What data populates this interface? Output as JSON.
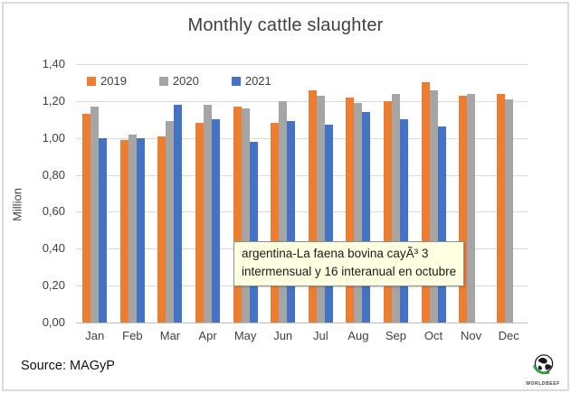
{
  "window": {
    "background": "#ffffff",
    "border_color": "#dcdcdc"
  },
  "chart_data": {
    "type": "bar",
    "title": "Monthly cattle slaughter",
    "xlabel": "",
    "ylabel": "Million",
    "ylim": [
      0,
      1.4
    ],
    "y_ticks": [
      "0,00",
      "0,20",
      "0,40",
      "0,60",
      "0,80",
      "1,00",
      "1,20",
      "1,40"
    ],
    "grid": true,
    "legend_position": "top-left-inside",
    "categories": [
      "Jan",
      "Feb",
      "Mar",
      "Apr",
      "May",
      "Jun",
      "Jul",
      "Aug",
      "Sep",
      "Oct",
      "Nov",
      "Dec"
    ],
    "series": [
      {
        "name": "2019",
        "color": "#ED7D31",
        "values": [
          1.13,
          0.99,
          1.01,
          1.08,
          1.17,
          1.08,
          1.26,
          1.22,
          1.2,
          1.3,
          1.23,
          1.24
        ]
      },
      {
        "name": "2020",
        "color": "#A5A5A5",
        "values": [
          1.17,
          1.02,
          1.09,
          1.18,
          1.16,
          1.2,
          1.23,
          1.19,
          1.24,
          1.26,
          1.24,
          1.21
        ]
      },
      {
        "name": "2021",
        "color": "#4472C4",
        "values": [
          1.0,
          1.0,
          1.18,
          1.1,
          0.98,
          1.09,
          1.07,
          1.14,
          1.1,
          1.06,
          null,
          null
        ]
      }
    ]
  },
  "tooltip": {
    "lines": [
      "argentina-La faena bovina cayÃ³ 3",
      "intermensual y 16 interanual en octubre"
    ],
    "background": "#ffffe1"
  },
  "footer": {
    "source": "Source: MAGyP"
  },
  "logo": {
    "text": "WORLDBEEF",
    "accent_color": "#2e9b3e"
  }
}
